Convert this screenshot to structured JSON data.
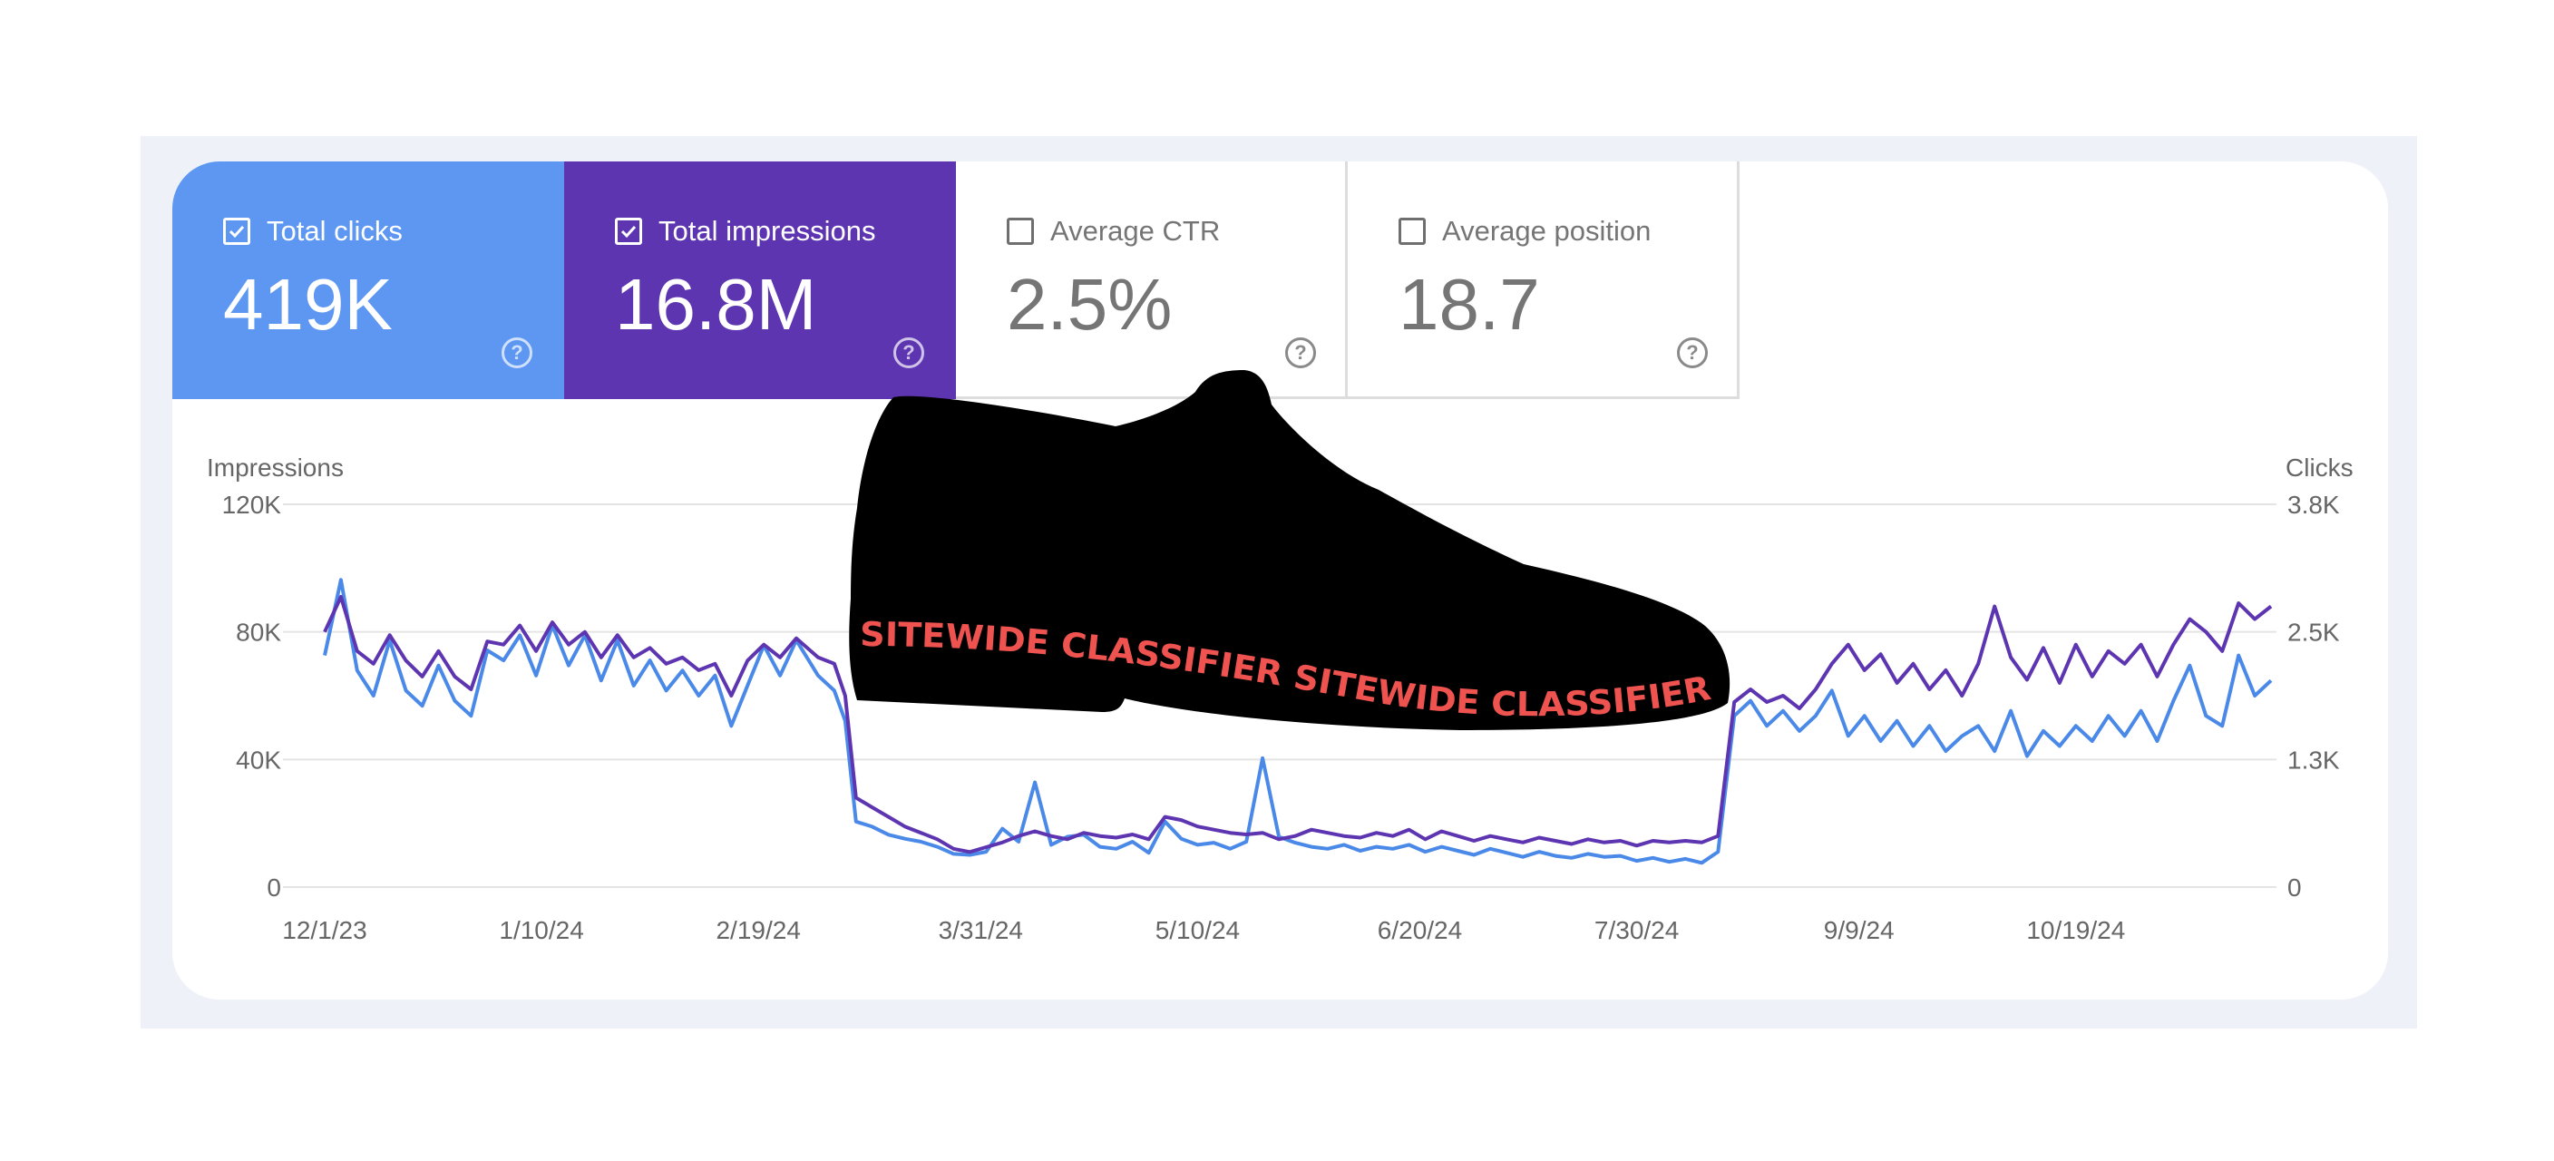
{
  "metrics": [
    {
      "label": "Total clicks",
      "value": "419K",
      "checked": true
    },
    {
      "label": "Total impressions",
      "value": "16.8M",
      "checked": true
    },
    {
      "label": "Average CTR",
      "value": "2.5%",
      "checked": false
    },
    {
      "label": "Average position",
      "value": "18.7",
      "checked": false
    }
  ],
  "colors": {
    "clicks": "#4a89e8",
    "impressions": "#5e35b1",
    "overlay_text": "#ef5350",
    "frame": "#eef2f8"
  },
  "overlay": {
    "icon": "shoe-icon",
    "text": "SITEWIDE CLASSIFIER SITEWIDE CLASSIFIER"
  },
  "chart_data": {
    "type": "line",
    "left_axis_title": "Impressions",
    "right_axis_title": "Clicks",
    "left_ticks": [
      "120K",
      "80K",
      "40K",
      "0"
    ],
    "right_ticks": [
      "3.8K",
      "2.5K",
      "1.3K",
      "0"
    ],
    "ylim_impressions": [
      0,
      120000
    ],
    "ylim_clicks": [
      0,
      3800
    ],
    "x_ticks": [
      "12/1/23",
      "1/10/24",
      "2/19/24",
      "3/31/24",
      "5/10/24",
      "6/20/24",
      "7/30/24",
      "9/9/24",
      "10/19/24"
    ],
    "x_range": [
      "2023-11-30",
      "2024-11-25"
    ],
    "series": [
      {
        "name": "Impressions",
        "axis": "left",
        "points": [
          [
            "2023-12-01",
            80000
          ],
          [
            "2023-12-04",
            91000
          ],
          [
            "2023-12-07",
            74000
          ],
          [
            "2023-12-10",
            70000
          ],
          [
            "2023-12-13",
            79000
          ],
          [
            "2023-12-16",
            71000
          ],
          [
            "2023-12-19",
            66000
          ],
          [
            "2023-12-22",
            74000
          ],
          [
            "2023-12-25",
            66000
          ],
          [
            "2023-12-28",
            62000
          ],
          [
            "2023-12-31",
            77000
          ],
          [
            "2024-01-03",
            76000
          ],
          [
            "2024-01-06",
            82000
          ],
          [
            "2024-01-09",
            74000
          ],
          [
            "2024-01-12",
            83000
          ],
          [
            "2024-01-15",
            76000
          ],
          [
            "2024-01-18",
            80000
          ],
          [
            "2024-01-21",
            72000
          ],
          [
            "2024-01-24",
            79000
          ],
          [
            "2024-01-27",
            72000
          ],
          [
            "2024-01-30",
            75000
          ],
          [
            "2024-02-02",
            70000
          ],
          [
            "2024-02-05",
            72000
          ],
          [
            "2024-02-08",
            68000
          ],
          [
            "2024-02-11",
            70000
          ],
          [
            "2024-02-14",
            60000
          ],
          [
            "2024-02-17",
            71000
          ],
          [
            "2024-02-20",
            76000
          ],
          [
            "2024-02-23",
            72000
          ],
          [
            "2024-02-26",
            78000
          ],
          [
            "2024-03-01",
            72000
          ],
          [
            "2024-03-04",
            70000
          ],
          [
            "2024-03-06",
            60000
          ],
          [
            "2024-03-08",
            28000
          ],
          [
            "2024-03-11",
            25000
          ],
          [
            "2024-03-14",
            22000
          ],
          [
            "2024-03-17",
            19000
          ],
          [
            "2024-03-20",
            17000
          ],
          [
            "2024-03-23",
            15000
          ],
          [
            "2024-03-26",
            12000
          ],
          [
            "2024-03-29",
            11000
          ],
          [
            "2024-04-01",
            12500
          ],
          [
            "2024-04-04",
            14000
          ],
          [
            "2024-04-07",
            16000
          ],
          [
            "2024-04-10",
            17500
          ],
          [
            "2024-04-13",
            16000
          ],
          [
            "2024-04-16",
            15000
          ],
          [
            "2024-04-19",
            17000
          ],
          [
            "2024-04-22",
            16000
          ],
          [
            "2024-04-25",
            15500
          ],
          [
            "2024-04-28",
            16500
          ],
          [
            "2024-05-01",
            15000
          ],
          [
            "2024-05-04",
            22000
          ],
          [
            "2024-05-07",
            21000
          ],
          [
            "2024-05-10",
            19000
          ],
          [
            "2024-05-13",
            18000
          ],
          [
            "2024-05-16",
            17000
          ],
          [
            "2024-05-19",
            16500
          ],
          [
            "2024-05-22",
            17000
          ],
          [
            "2024-05-25",
            15000
          ],
          [
            "2024-05-28",
            16000
          ],
          [
            "2024-05-31",
            18000
          ],
          [
            "2024-06-03",
            17000
          ],
          [
            "2024-06-06",
            16000
          ],
          [
            "2024-06-09",
            15500
          ],
          [
            "2024-06-12",
            17000
          ],
          [
            "2024-06-15",
            16000
          ],
          [
            "2024-06-18",
            18000
          ],
          [
            "2024-06-21",
            15000
          ],
          [
            "2024-06-24",
            17500
          ],
          [
            "2024-06-27",
            16000
          ],
          [
            "2024-06-30",
            14500
          ],
          [
            "2024-07-03",
            16000
          ],
          [
            "2024-07-06",
            15000
          ],
          [
            "2024-07-09",
            14000
          ],
          [
            "2024-07-12",
            15500
          ],
          [
            "2024-07-15",
            14500
          ],
          [
            "2024-07-18",
            13500
          ],
          [
            "2024-07-21",
            15000
          ],
          [
            "2024-07-24",
            14000
          ],
          [
            "2024-07-27",
            14500
          ],
          [
            "2024-07-30",
            13000
          ],
          [
            "2024-08-02",
            14500
          ],
          [
            "2024-08-05",
            14000
          ],
          [
            "2024-08-08",
            14500
          ],
          [
            "2024-08-11",
            14000
          ],
          [
            "2024-08-14",
            16000
          ],
          [
            "2024-08-17",
            58000
          ],
          [
            "2024-08-20",
            62000
          ],
          [
            "2024-08-23",
            58000
          ],
          [
            "2024-08-26",
            60000
          ],
          [
            "2024-08-29",
            56000
          ],
          [
            "2024-09-01",
            62000
          ],
          [
            "2024-09-04",
            70000
          ],
          [
            "2024-09-07",
            76000
          ],
          [
            "2024-09-10",
            68000
          ],
          [
            "2024-09-13",
            73000
          ],
          [
            "2024-09-16",
            64000
          ],
          [
            "2024-09-19",
            70000
          ],
          [
            "2024-09-22",
            62000
          ],
          [
            "2024-09-25",
            68000
          ],
          [
            "2024-09-28",
            60000
          ],
          [
            "2024-10-01",
            70000
          ],
          [
            "2024-10-04",
            88000
          ],
          [
            "2024-10-07",
            72000
          ],
          [
            "2024-10-10",
            65000
          ],
          [
            "2024-10-13",
            75000
          ],
          [
            "2024-10-16",
            64000
          ],
          [
            "2024-10-19",
            76000
          ],
          [
            "2024-10-22",
            66000
          ],
          [
            "2024-10-25",
            74000
          ],
          [
            "2024-10-28",
            70000
          ],
          [
            "2024-10-31",
            76000
          ],
          [
            "2024-11-03",
            66000
          ],
          [
            "2024-11-06",
            76000
          ],
          [
            "2024-11-09",
            84000
          ],
          [
            "2024-11-12",
            80000
          ],
          [
            "2024-11-15",
            74000
          ],
          [
            "2024-11-18",
            89000
          ],
          [
            "2024-11-21",
            84000
          ],
          [
            "2024-11-24",
            88000
          ]
        ]
      },
      {
        "name": "Clicks",
        "axis": "right",
        "points": [
          [
            "2023-12-01",
            2300
          ],
          [
            "2023-12-04",
            3050
          ],
          [
            "2023-12-07",
            2150
          ],
          [
            "2023-12-10",
            1900
          ],
          [
            "2023-12-13",
            2450
          ],
          [
            "2023-12-16",
            1950
          ],
          [
            "2023-12-19",
            1800
          ],
          [
            "2023-12-22",
            2200
          ],
          [
            "2023-12-25",
            1850
          ],
          [
            "2023-12-28",
            1700
          ],
          [
            "2023-12-31",
            2350
          ],
          [
            "2024-01-03",
            2250
          ],
          [
            "2024-01-06",
            2500
          ],
          [
            "2024-01-09",
            2100
          ],
          [
            "2024-01-12",
            2600
          ],
          [
            "2024-01-15",
            2200
          ],
          [
            "2024-01-18",
            2500
          ],
          [
            "2024-01-21",
            2050
          ],
          [
            "2024-01-24",
            2450
          ],
          [
            "2024-01-27",
            2000
          ],
          [
            "2024-01-30",
            2250
          ],
          [
            "2024-02-02",
            1950
          ],
          [
            "2024-02-05",
            2150
          ],
          [
            "2024-02-08",
            1900
          ],
          [
            "2024-02-11",
            2100
          ],
          [
            "2024-02-14",
            1600
          ],
          [
            "2024-02-17",
            2000
          ],
          [
            "2024-02-20",
            2400
          ],
          [
            "2024-02-23",
            2100
          ],
          [
            "2024-02-26",
            2450
          ],
          [
            "2024-03-01",
            2100
          ],
          [
            "2024-03-04",
            1950
          ],
          [
            "2024-03-06",
            1650
          ],
          [
            "2024-03-08",
            650
          ],
          [
            "2024-03-11",
            600
          ],
          [
            "2024-03-14",
            520
          ],
          [
            "2024-03-17",
            480
          ],
          [
            "2024-03-20",
            450
          ],
          [
            "2024-03-23",
            400
          ],
          [
            "2024-03-26",
            330
          ],
          [
            "2024-03-29",
            320
          ],
          [
            "2024-04-01",
            350
          ],
          [
            "2024-04-04",
            580
          ],
          [
            "2024-04-07",
            450
          ],
          [
            "2024-04-10",
            1040
          ],
          [
            "2024-04-13",
            420
          ],
          [
            "2024-04-16",
            500
          ],
          [
            "2024-04-19",
            520
          ],
          [
            "2024-04-22",
            400
          ],
          [
            "2024-04-25",
            380
          ],
          [
            "2024-04-28",
            450
          ],
          [
            "2024-05-01",
            340
          ],
          [
            "2024-05-04",
            650
          ],
          [
            "2024-05-07",
            480
          ],
          [
            "2024-05-10",
            420
          ],
          [
            "2024-05-13",
            440
          ],
          [
            "2024-05-16",
            380
          ],
          [
            "2024-05-19",
            450
          ],
          [
            "2024-05-22",
            1280
          ],
          [
            "2024-05-25",
            500
          ],
          [
            "2024-05-28",
            440
          ],
          [
            "2024-05-31",
            400
          ],
          [
            "2024-06-03",
            380
          ],
          [
            "2024-06-06",
            420
          ],
          [
            "2024-06-09",
            360
          ],
          [
            "2024-06-12",
            400
          ],
          [
            "2024-06-15",
            380
          ],
          [
            "2024-06-18",
            420
          ],
          [
            "2024-06-21",
            350
          ],
          [
            "2024-06-24",
            400
          ],
          [
            "2024-06-27",
            360
          ],
          [
            "2024-06-30",
            320
          ],
          [
            "2024-07-03",
            380
          ],
          [
            "2024-07-06",
            340
          ],
          [
            "2024-07-09",
            300
          ],
          [
            "2024-07-12",
            350
          ],
          [
            "2024-07-15",
            310
          ],
          [
            "2024-07-18",
            290
          ],
          [
            "2024-07-21",
            330
          ],
          [
            "2024-07-24",
            300
          ],
          [
            "2024-07-27",
            310
          ],
          [
            "2024-07-30",
            260
          ],
          [
            "2024-08-02",
            290
          ],
          [
            "2024-08-05",
            250
          ],
          [
            "2024-08-08",
            280
          ],
          [
            "2024-08-11",
            240
          ],
          [
            "2024-08-14",
            350
          ],
          [
            "2024-08-17",
            1700
          ],
          [
            "2024-08-20",
            1850
          ],
          [
            "2024-08-23",
            1600
          ],
          [
            "2024-08-26",
            1750
          ],
          [
            "2024-08-29",
            1550
          ],
          [
            "2024-09-01",
            1700
          ],
          [
            "2024-09-04",
            1950
          ],
          [
            "2024-09-07",
            1500
          ],
          [
            "2024-09-10",
            1700
          ],
          [
            "2024-09-13",
            1450
          ],
          [
            "2024-09-16",
            1650
          ],
          [
            "2024-09-19",
            1400
          ],
          [
            "2024-09-22",
            1600
          ],
          [
            "2024-09-25",
            1350
          ],
          [
            "2024-09-28",
            1500
          ],
          [
            "2024-10-01",
            1600
          ],
          [
            "2024-10-04",
            1350
          ],
          [
            "2024-10-07",
            1750
          ],
          [
            "2024-10-10",
            1300
          ],
          [
            "2024-10-13",
            1550
          ],
          [
            "2024-10-16",
            1400
          ],
          [
            "2024-10-19",
            1600
          ],
          [
            "2024-10-22",
            1450
          ],
          [
            "2024-10-25",
            1700
          ],
          [
            "2024-10-28",
            1500
          ],
          [
            "2024-10-31",
            1750
          ],
          [
            "2024-11-03",
            1450
          ],
          [
            "2024-11-06",
            1850
          ],
          [
            "2024-11-09",
            2200
          ],
          [
            "2024-11-12",
            1700
          ],
          [
            "2024-11-15",
            1600
          ],
          [
            "2024-11-18",
            2300
          ],
          [
            "2024-11-21",
            1900
          ],
          [
            "2024-11-24",
            2050
          ]
        ]
      }
    ],
    "grid": true
  }
}
